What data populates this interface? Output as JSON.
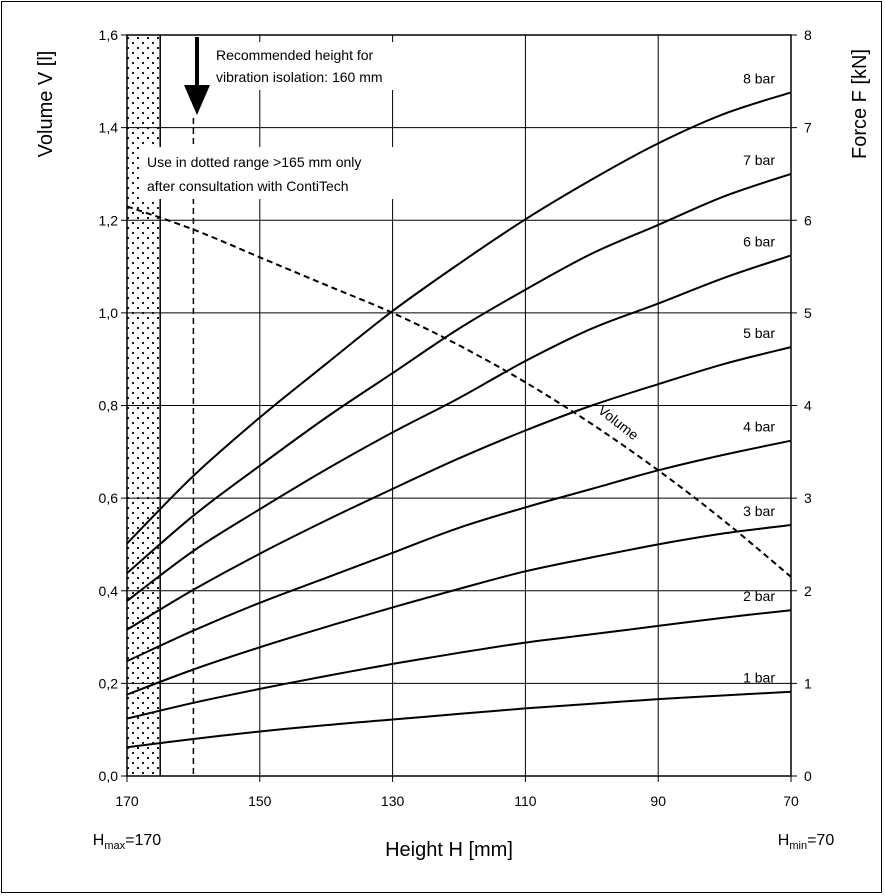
{
  "chart_data": {
    "type": "line",
    "x_axis": {
      "label": "Height H [mm]",
      "range": [
        170,
        70
      ],
      "ticks": [
        "170",
        "150",
        "130",
        "110",
        "90",
        "70"
      ]
    },
    "y_axis_left": {
      "label": "Volume V [l]",
      "range": [
        0,
        1.6
      ],
      "ticks": [
        "0,0",
        "0,2",
        "0,4",
        "0,6",
        "0,8",
        "1,0",
        "1,2",
        "1,4",
        "1,6"
      ]
    },
    "y_axis_right": {
      "label": "Force F [kN]",
      "range": [
        0,
        8
      ],
      "ticks": [
        "0",
        "1",
        "2",
        "3",
        "4",
        "5",
        "6",
        "7",
        "8"
      ]
    },
    "force_x": [
      170,
      160,
      150,
      140,
      130,
      120,
      110,
      100,
      90,
      80,
      70
    ],
    "series": [
      {
        "name": "1 bar",
        "axis": "right",
        "values": [
          0.31,
          0.4,
          0.48,
          0.55,
          0.61,
          0.67,
          0.73,
          0.78,
          0.83,
          0.87,
          0.91
        ]
      },
      {
        "name": "2 bar",
        "axis": "right",
        "values": [
          0.62,
          0.79,
          0.94,
          1.08,
          1.21,
          1.33,
          1.44,
          1.53,
          1.62,
          1.71,
          1.79
        ]
      },
      {
        "name": "3 bar",
        "axis": "right",
        "values": [
          0.88,
          1.15,
          1.39,
          1.61,
          1.82,
          2.02,
          2.21,
          2.36,
          2.5,
          2.62,
          2.71
        ]
      },
      {
        "name": "4 bar",
        "axis": "right",
        "values": [
          1.24,
          1.57,
          1.87,
          2.14,
          2.41,
          2.68,
          2.9,
          3.1,
          3.3,
          3.47,
          3.62
        ]
      },
      {
        "name": "5 bar",
        "axis": "right",
        "values": [
          1.58,
          2.01,
          2.4,
          2.76,
          3.1,
          3.43,
          3.73,
          4.0,
          4.23,
          4.45,
          4.63
        ]
      },
      {
        "name": "6 bar",
        "axis": "right",
        "values": [
          1.89,
          2.43,
          2.88,
          3.31,
          3.71,
          4.08,
          4.48,
          4.83,
          5.1,
          5.38,
          5.62
        ]
      },
      {
        "name": "7 bar",
        "axis": "right",
        "values": [
          2.19,
          2.81,
          3.35,
          3.87,
          4.35,
          4.83,
          5.25,
          5.64,
          5.95,
          6.26,
          6.5
        ]
      },
      {
        "name": "8 bar",
        "axis": "right",
        "values": [
          2.51,
          3.24,
          3.87,
          4.45,
          5.02,
          5.53,
          6.01,
          6.44,
          6.83,
          7.15,
          7.38
        ]
      }
    ],
    "volume": {
      "name": "Volume",
      "axis": "left",
      "style": "dashed",
      "x": [
        170,
        160,
        150,
        140,
        130,
        120,
        110,
        100,
        90,
        80,
        70
      ],
      "values": [
        1.23,
        1.18,
        1.12,
        1.06,
        1.0,
        0.93,
        0.85,
        0.76,
        0.66,
        0.55,
        0.43
      ]
    },
    "annotations": {
      "arrow_note": [
        "Recommended height for",
        "vibration isolation: 160 mm"
      ],
      "dotted_note": [
        "Use in dotted range >165 mm only",
        "after consultation with ContiTech"
      ],
      "hmax": {
        "main": "H",
        "sub": "max",
        "rest": "=170"
      },
      "hmin": {
        "main": "H",
        "sub": "min",
        "rest": "=70"
      }
    },
    "reference_lines": {
      "solid_x": 165,
      "dashed_x": 160
    },
    "dotted_range": [
      170,
      165
    ],
    "grid": true
  }
}
